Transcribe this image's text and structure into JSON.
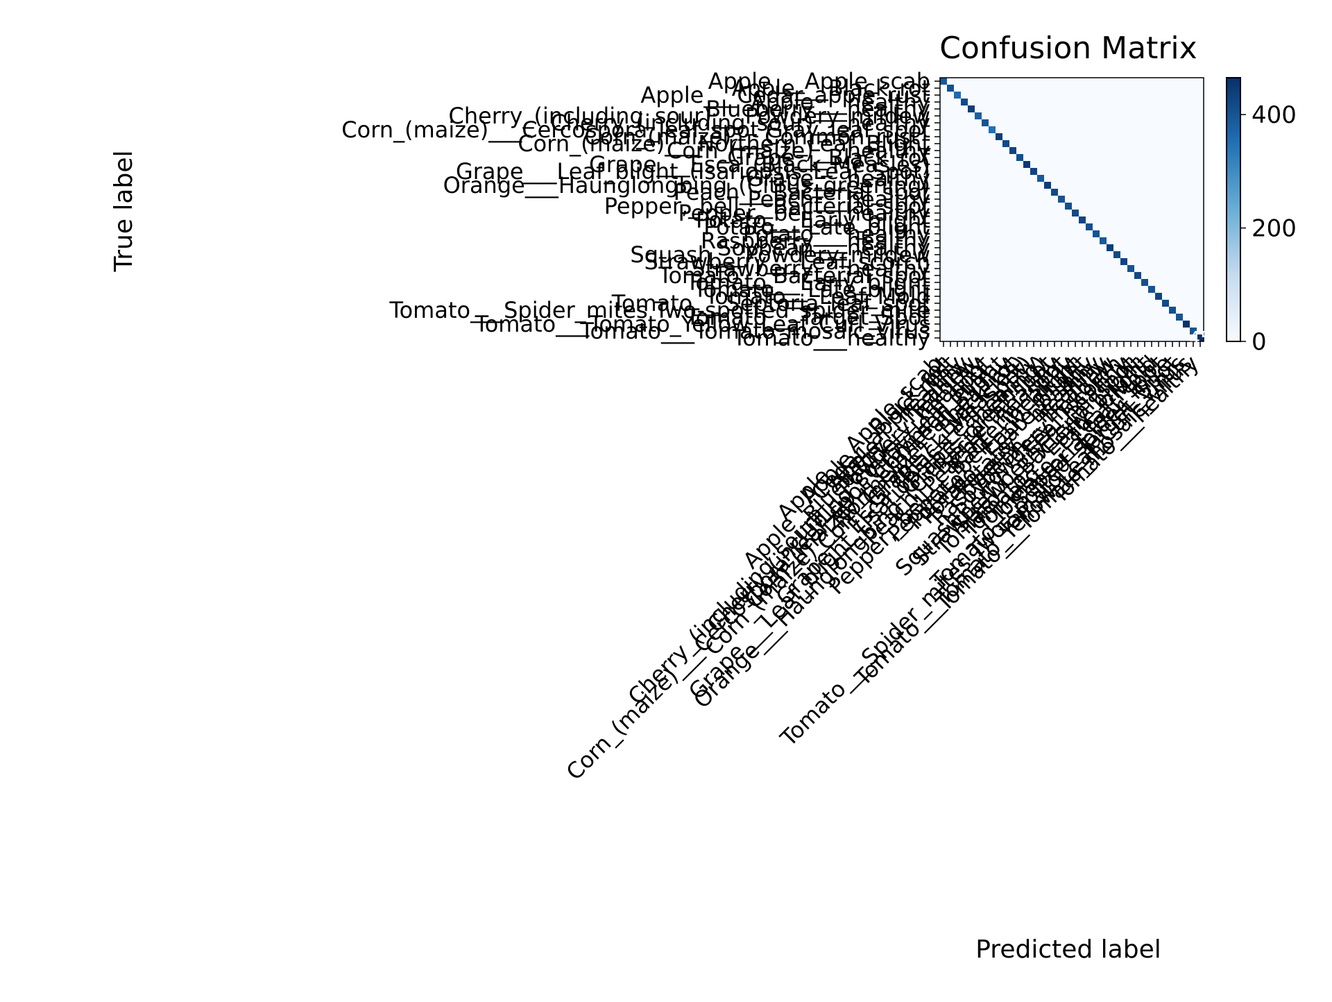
{
  "chart_data": {
    "type": "heatmap",
    "title": "Confusion Matrix",
    "xlabel": "Predicted label",
    "ylabel": "True label",
    "colormap": "Blues",
    "colormap_colors": [
      "#f7fbff",
      "#c6dbef",
      "#6baed6",
      "#2171b5",
      "#08306b"
    ],
    "value_range": [
      0,
      465
    ],
    "colorbar_ticks": [
      0,
      200,
      400
    ],
    "classes": [
      "Apple___Apple_scab",
      "Apple___Black_rot",
      "Apple___Cedar_apple_rust",
      "Apple___healthy",
      "Blueberry___healthy",
      "Cherry_(including_sour)___Powdery_mildew",
      "Cherry_(including_sour)___healthy",
      "Corn_(maize)___Cercospora_leaf_spot Gray_leaf_spot",
      "Corn_(maize)___Common_rust_",
      "Corn_(maize)___Northern_Leaf_Blight",
      "Corn_(maize)___healthy",
      "Grape___Black_rot",
      "Grape___Esca_(Black_Measles)",
      "Grape___Leaf_blight_(Isariopsis_Leaf_Spot)",
      "Grape___healthy",
      "Orange___Haunglongbing_(Citrus_greening)",
      "Peach___Bacterial_spot",
      "Peach___healthy",
      "Pepper,_bell___Bacterial_spot",
      "Pepper,_bell___healthy",
      "Potato___Early_blight",
      "Potato___Late_blight",
      "Potato___healthy",
      "Raspberry___healthy",
      "Soybean___healthy",
      "Squash___Powdery_mildew",
      "Strawberry___Leaf_scorch",
      "Strawberry___healthy",
      "Tomato___Bacterial_spot",
      "Tomato___Early_blight",
      "Tomato___Late_blight",
      "Tomato___Leaf_Mold",
      "Tomato___Septoria_leaf_spot",
      "Tomato___Spider_mites Two-spotted_spider_mite",
      "Tomato___Target_Spot",
      "Tomato___Tomato_Yellow_Leaf_Curl_Virus",
      "Tomato___Tomato_mosaic_virus",
      "Tomato___healthy"
    ],
    "diagonal": [
      390,
      410,
      360,
      420,
      440,
      380,
      400,
      350,
      440,
      420,
      430,
      410,
      450,
      430,
      390,
      440,
      420,
      400,
      410,
      420,
      430,
      410,
      400,
      390,
      440,
      420,
      430,
      400,
      420,
      410,
      400,
      430,
      420,
      410,
      400,
      460,
      400,
      465
    ],
    "off_diagonal_value": 0,
    "visible_cell_text": "45"
  }
}
